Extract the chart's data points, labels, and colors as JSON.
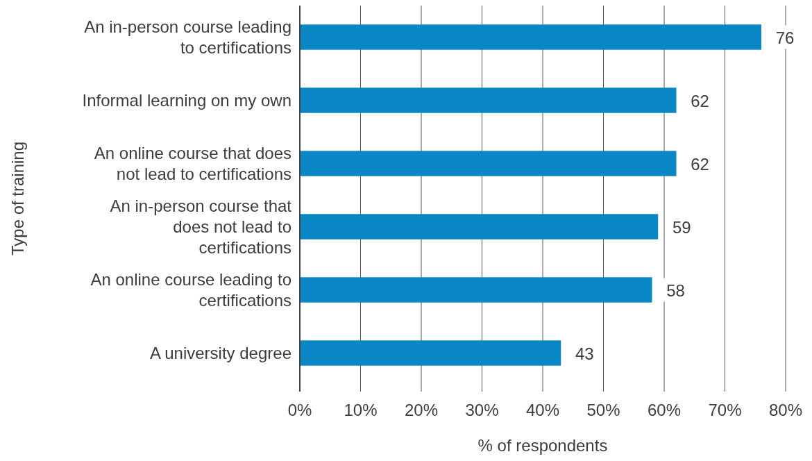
{
  "chart_data": {
    "type": "bar",
    "orientation": "horizontal",
    "categories": [
      "An in-person course leading to certifications",
      "Informal learning on my own",
      "An online course that does not lead to certifications",
      "An in-person course that does not lead to certifications",
      "An online course leading to certifications",
      "A university degree"
    ],
    "values": [
      76,
      62,
      62,
      59,
      58,
      43
    ],
    "color": "#0a88c6",
    "xlim": [
      0,
      80
    ],
    "xticks": [
      {
        "value": 0,
        "label": "0%"
      },
      {
        "value": 10,
        "label": "10%"
      },
      {
        "value": 20,
        "label": "20%"
      },
      {
        "value": 30,
        "label": "30%"
      },
      {
        "value": 40,
        "label": "40%"
      },
      {
        "value": 50,
        "label": "50%"
      },
      {
        "value": 60,
        "label": "60%"
      },
      {
        "value": 70,
        "label": "70%"
      },
      {
        "value": 80,
        "label": "80%"
      }
    ],
    "xlabel": "% of respondents",
    "ylabel": "Type of training",
    "grid": "x",
    "data_labels": true
  }
}
